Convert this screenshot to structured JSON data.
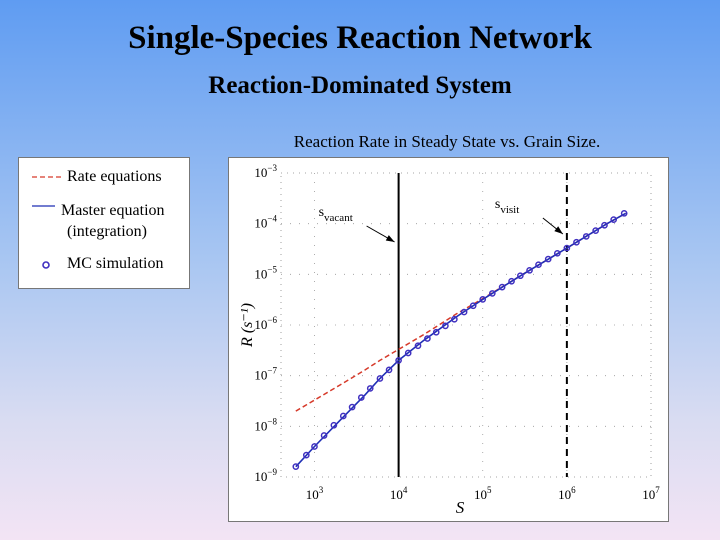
{
  "slide": {
    "title": "Single-Species Reaction Network",
    "subtitle": "Reaction-Dominated System"
  },
  "legend": {
    "rate": "Rate equations",
    "master_line1": "Master equation",
    "master_line2": "(integration)",
    "mc": "MC simulation"
  },
  "colors": {
    "rate_equations": "#d63a2a",
    "master_equation": "#1f2fb5",
    "mc_simulation": "#4030c0"
  },
  "chart_data": {
    "type": "line",
    "title": "Reaction Rate in Steady State vs. Grain Size.",
    "xlabel": "S",
    "ylabel": "R (s⁻¹)",
    "xscale": "log",
    "yscale": "log",
    "xlim": [
      400,
      10000000
    ],
    "ylim": [
      1e-09,
      0.001
    ],
    "xticks": [
      {
        "value": 1000,
        "base": "10",
        "exp": "3"
      },
      {
        "value": 10000,
        "base": "10",
        "exp": "4"
      },
      {
        "value": 100000,
        "base": "10",
        "exp": "5"
      },
      {
        "value": 1000000,
        "base": "10",
        "exp": "6"
      },
      {
        "value": 10000000,
        "base": "10",
        "exp": "7"
      }
    ],
    "yticks": [
      {
        "value": 0.001,
        "base": "10",
        "exp": "−3"
      },
      {
        "value": 0.0001,
        "base": "10",
        "exp": "−4"
      },
      {
        "value": 1e-05,
        "base": "10",
        "exp": "−5"
      },
      {
        "value": 1e-06,
        "base": "10",
        "exp": "−6"
      },
      {
        "value": 1e-07,
        "base": "10",
        "exp": "−7"
      },
      {
        "value": 1e-08,
        "base": "10",
        "exp": "−8"
      },
      {
        "value": 1e-09,
        "base": "10",
        "exp": "−9"
      }
    ],
    "vlines": [
      {
        "x": 10000,
        "style": "solid",
        "label": "s",
        "label_sub": "vacant"
      },
      {
        "x": 1000000,
        "style": "dashed",
        "label": "s",
        "label_sub": "visit"
      }
    ],
    "series": [
      {
        "name": "Rate equations",
        "style": "dashed",
        "x": [
          600,
          1000,
          2000,
          4000,
          6000,
          10000,
          20000,
          50000,
          100000,
          300000,
          1000000,
          3000000,
          5000000
        ],
        "y": [
          2e-08,
          3.3e-08,
          6.5e-08,
          1.3e-07,
          2e-07,
          3.3e-07,
          6.5e-07,
          1.7e-06,
          3.3e-06,
          1e-05,
          3.3e-05,
          0.0001,
          0.00016
        ]
      },
      {
        "name": "Master equation (integration)",
        "style": "solid",
        "x": [
          600,
          1000,
          2000,
          4000,
          6000,
          10000,
          20000,
          50000,
          100000,
          300000,
          1000000,
          3000000,
          5000000
        ],
        "y": [
          1.6e-09,
          4e-09,
          1.3e-08,
          4.2e-08,
          8.8e-08,
          2e-07,
          5e-07,
          1.5e-06,
          3.2e-06,
          1e-05,
          3.3e-05,
          0.0001,
          0.00016
        ]
      },
      {
        "name": "MC simulation",
        "style": "markers",
        "x": [
          600,
          800,
          1000,
          1300,
          1700,
          2200,
          2800,
          3600,
          4600,
          6000,
          7700,
          10000,
          13000,
          17000,
          22000,
          28000,
          36000,
          46000,
          60000,
          77000,
          100000,
          130000,
          170000,
          220000,
          280000,
          360000,
          460000,
          600000,
          770000,
          1000000,
          1300000,
          1700000,
          2200000,
          2800000,
          3600000,
          4800000
        ],
        "y": [
          1.6e-09,
          2.7e-09,
          4e-09,
          6.6e-09,
          1.05e-08,
          1.6e-08,
          2.4e-08,
          3.7e-08,
          5.6e-08,
          8.8e-08,
          1.3e-07,
          2e-07,
          2.8e-07,
          3.9e-07,
          5.4e-07,
          7.2e-07,
          9.6e-07,
          1.3e-06,
          1.8e-06,
          2.4e-06,
          3.2e-06,
          4.2e-06,
          5.6e-06,
          7.3e-06,
          9.4e-06,
          1.2e-05,
          1.55e-05,
          2e-05,
          2.6e-05,
          3.3e-05,
          4.3e-05,
          5.6e-05,
          7.3e-05,
          9.3e-05,
          0.00012,
          0.00016
        ]
      }
    ]
  }
}
